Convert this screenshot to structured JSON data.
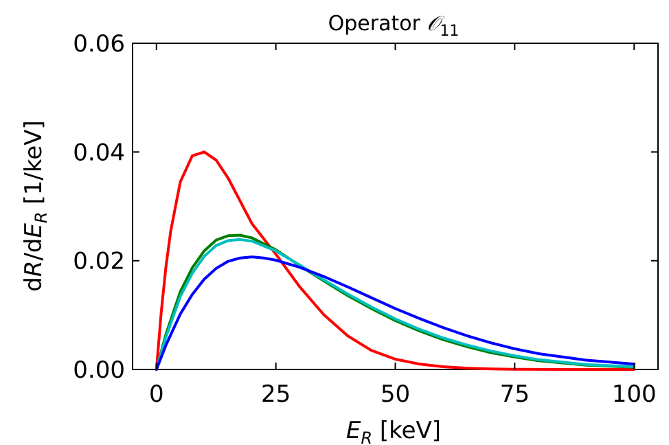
{
  "chart_data": {
    "type": "line",
    "title": {
      "prefix": "Operator ",
      "symbol": "𝒪",
      "subscript": "11"
    },
    "xlabel": {
      "var": "E",
      "sub": "R",
      "unit": " [keV]"
    },
    "ylabel": {
      "pre": "d",
      "var1": "R",
      "mid": "/d",
      "var2": "E",
      "sub": "R",
      "unit": " [1/keV]"
    },
    "xlim": [
      -5,
      105
    ],
    "ylim": [
      0,
      0.06
    ],
    "xticks": [
      0,
      25,
      50,
      75,
      100
    ],
    "xtick_labels": [
      "0",
      "25",
      "50",
      "75",
      "100"
    ],
    "yticks": [
      0,
      0.02,
      0.04,
      0.06
    ],
    "ytick_labels": [
      "0.00",
      "0.02",
      "0.04",
      "0.06"
    ],
    "grid": false,
    "series": [
      {
        "color": "#ff0000",
        "x": [
          0,
          1,
          2,
          3,
          5,
          7.5,
          10,
          12.5,
          15,
          17.5,
          20,
          25,
          30,
          35,
          40,
          45,
          50,
          55,
          60,
          65,
          70,
          75,
          80,
          90,
          100
        ],
        "y": [
          0,
          0.0105,
          0.019,
          0.0255,
          0.0345,
          0.0393,
          0.04,
          0.0385,
          0.0352,
          0.031,
          0.0268,
          0.0212,
          0.0152,
          0.0101,
          0.0062,
          0.0035,
          0.0019,
          0.001,
          0.0005,
          0.00024,
          0.0001,
          4e-05,
          1e-05,
          0,
          0
        ]
      },
      {
        "color": "#007f00",
        "x": [
          0,
          2,
          5,
          7.5,
          10,
          12.5,
          15,
          17.5,
          20,
          25,
          30,
          35,
          40,
          45,
          50,
          55,
          60,
          65,
          70,
          75,
          80,
          90,
          100
        ],
        "y": [
          0,
          0.0065,
          0.0143,
          0.0187,
          0.0218,
          0.0238,
          0.0246,
          0.0247,
          0.0242,
          0.022,
          0.0191,
          0.0163,
          0.0136,
          0.0112,
          0.009,
          0.0071,
          0.0055,
          0.0042,
          0.0031,
          0.0023,
          0.0016,
          0.0008,
          0.0004
        ]
      },
      {
        "color": "#00bfbf",
        "x": [
          0,
          2,
          5,
          7.5,
          10,
          12.5,
          15,
          17.5,
          20,
          25,
          30,
          35,
          40,
          45,
          50,
          55,
          60,
          65,
          70,
          75,
          80,
          90,
          100
        ],
        "y": [
          0,
          0.006,
          0.0134,
          0.0177,
          0.0208,
          0.0228,
          0.0237,
          0.0239,
          0.0236,
          0.0218,
          0.0192,
          0.0165,
          0.0139,
          0.0115,
          0.0093,
          0.0074,
          0.0058,
          0.0045,
          0.0034,
          0.0025,
          0.0018,
          0.0009,
          0.0005
        ]
      },
      {
        "color": "#0000ff",
        "x": [
          0,
          2,
          5,
          7.5,
          10,
          12.5,
          15,
          17.5,
          20,
          22.5,
          25,
          30,
          35,
          40,
          45,
          50,
          55,
          60,
          65,
          70,
          75,
          80,
          90,
          100
        ],
        "y": [
          0,
          0.0045,
          0.0102,
          0.0138,
          0.0166,
          0.0186,
          0.0199,
          0.0205,
          0.0207,
          0.0205,
          0.0201,
          0.0188,
          0.0171,
          0.0152,
          0.0132,
          0.0112,
          0.0094,
          0.0077,
          0.0062,
          0.0049,
          0.0038,
          0.0029,
          0.0017,
          0.001
        ]
      }
    ]
  }
}
